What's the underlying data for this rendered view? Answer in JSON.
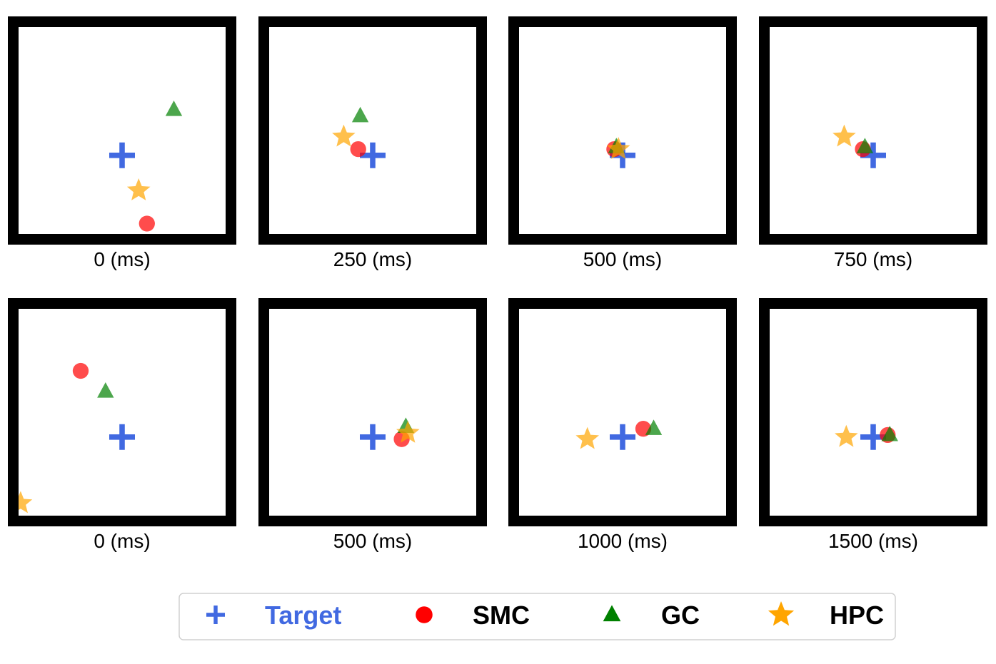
{
  "colors": {
    "target": "#4169E1",
    "smc": "#FF0000",
    "gc": "#008000",
    "hpc": "#FFA500",
    "frame": "#000000"
  },
  "legend": {
    "items": [
      {
        "key": "target",
        "label": "Target",
        "marker": "plus-icon"
      },
      {
        "key": "smc",
        "label": "SMC",
        "marker": "circle-icon"
      },
      {
        "key": "gc",
        "label": "GC",
        "marker": "triangle-icon"
      },
      {
        "key": "hpc",
        "label": "HPC",
        "marker": "star-icon"
      }
    ]
  },
  "chart_data": [
    {
      "type": "scatter",
      "xlim": [
        0,
        1
      ],
      "ylim": [
        0,
        1
      ],
      "caption": "0 (ms)",
      "series": [
        {
          "name": "Target",
          "x": [
            0.5
          ],
          "y": [
            0.38
          ]
        },
        {
          "name": "SMC",
          "x": [
            0.62
          ],
          "y": [
            0.05
          ]
        },
        {
          "name": "GC",
          "x": [
            0.75
          ],
          "y": [
            0.6
          ]
        },
        {
          "name": "HPC",
          "x": [
            0.58
          ],
          "y": [
            0.21
          ]
        }
      ]
    },
    {
      "type": "scatter",
      "xlim": [
        0,
        1
      ],
      "ylim": [
        0,
        1
      ],
      "caption": "250 (ms)",
      "series": [
        {
          "name": "Target",
          "x": [
            0.5
          ],
          "y": [
            0.38
          ]
        },
        {
          "name": "SMC",
          "x": [
            0.43
          ],
          "y": [
            0.41
          ]
        },
        {
          "name": "GC",
          "x": [
            0.44
          ],
          "y": [
            0.57
          ]
        },
        {
          "name": "HPC",
          "x": [
            0.36
          ],
          "y": [
            0.47
          ]
        }
      ]
    },
    {
      "type": "scatter",
      "xlim": [
        0,
        1
      ],
      "ylim": [
        0,
        1
      ],
      "caption": "500 (ms)",
      "series": [
        {
          "name": "Target",
          "x": [
            0.5
          ],
          "y": [
            0.38
          ]
        },
        {
          "name": "SMC",
          "x": [
            0.46
          ],
          "y": [
            0.41
          ]
        },
        {
          "name": "GC",
          "x": [
            0.47
          ],
          "y": [
            0.42
          ]
        },
        {
          "name": "HPC",
          "x": [
            0.48
          ],
          "y": [
            0.41
          ]
        }
      ]
    },
    {
      "type": "scatter",
      "xlim": [
        0,
        1
      ],
      "ylim": [
        0,
        1
      ],
      "caption": "750 (ms)",
      "series": [
        {
          "name": "Target",
          "x": [
            0.5
          ],
          "y": [
            0.38
          ]
        },
        {
          "name": "SMC",
          "x": [
            0.45
          ],
          "y": [
            0.41
          ]
        },
        {
          "name": "GC",
          "x": [
            0.46
          ],
          "y": [
            0.42
          ]
        },
        {
          "name": "HPC",
          "x": [
            0.36
          ],
          "y": [
            0.47
          ]
        }
      ]
    },
    {
      "type": "scatter",
      "xlim": [
        0,
        1
      ],
      "ylim": [
        0,
        1
      ],
      "caption": "0 (ms)",
      "series": [
        {
          "name": "Target",
          "x": [
            0.5
          ],
          "y": [
            0.38
          ]
        },
        {
          "name": "SMC",
          "x": [
            0.3
          ],
          "y": [
            0.7
          ]
        },
        {
          "name": "GC",
          "x": [
            0.42
          ],
          "y": [
            0.6
          ]
        },
        {
          "name": "HPC",
          "x": [
            0.01
          ],
          "y": [
            0.06
          ]
        }
      ]
    },
    {
      "type": "scatter",
      "xlim": [
        0,
        1
      ],
      "ylim": [
        0,
        1
      ],
      "caption": "500 (ms)",
      "series": [
        {
          "name": "Target",
          "x": [
            0.5
          ],
          "y": [
            0.38
          ]
        },
        {
          "name": "SMC",
          "x": [
            0.64
          ],
          "y": [
            0.37
          ]
        },
        {
          "name": "GC",
          "x": [
            0.66
          ],
          "y": [
            0.43
          ]
        },
        {
          "name": "HPC",
          "x": [
            0.67
          ],
          "y": [
            0.4
          ]
        }
      ]
    },
    {
      "type": "scatter",
      "xlim": [
        0,
        1
      ],
      "ylim": [
        0,
        1
      ],
      "caption": "1000 (ms)",
      "series": [
        {
          "name": "Target",
          "x": [
            0.5
          ],
          "y": [
            0.38
          ]
        },
        {
          "name": "SMC",
          "x": [
            0.6
          ],
          "y": [
            0.42
          ]
        },
        {
          "name": "GC",
          "x": [
            0.65
          ],
          "y": [
            0.42
          ]
        },
        {
          "name": "HPC",
          "x": [
            0.33
          ],
          "y": [
            0.37
          ]
        }
      ]
    },
    {
      "type": "scatter",
      "xlim": [
        0,
        1
      ],
      "ylim": [
        0,
        1
      ],
      "caption": "1500 (ms)",
      "series": [
        {
          "name": "Target",
          "x": [
            0.5
          ],
          "y": [
            0.38
          ]
        },
        {
          "name": "SMC",
          "x": [
            0.57
          ],
          "y": [
            0.39
          ]
        },
        {
          "name": "GC",
          "x": [
            0.58
          ],
          "y": [
            0.39
          ]
        },
        {
          "name": "HPC",
          "x": [
            0.37
          ],
          "y": [
            0.38
          ]
        }
      ]
    }
  ]
}
